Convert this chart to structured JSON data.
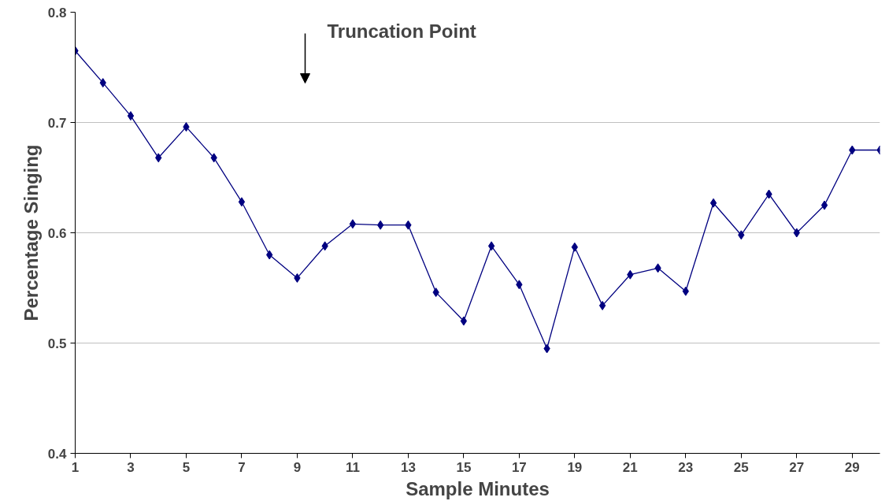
{
  "chart_data": {
    "type": "line",
    "xlabel": "Sample Minutes",
    "ylabel": "Percentage Singing",
    "x": [
      1,
      2,
      3,
      4,
      5,
      6,
      7,
      8,
      9,
      10,
      11,
      12,
      13,
      14,
      15,
      16,
      17,
      18,
      19,
      20,
      21,
      22,
      23,
      24,
      25,
      26,
      27,
      28,
      29,
      30
    ],
    "series": [
      {
        "color": "#000080",
        "values": [
          0.765,
          0.736,
          0.706,
          0.668,
          0.696,
          0.668,
          0.628,
          0.58,
          0.559,
          0.588,
          0.608,
          0.607,
          0.607,
          0.546,
          0.52,
          0.588,
          0.553,
          0.495,
          0.587,
          0.534,
          0.562,
          0.568,
          0.547,
          0.627,
          0.598,
          0.635,
          0.6,
          0.625,
          0.675,
          0.675
        ]
      }
    ],
    "xlim": [
      1,
      30
    ],
    "xticks": [
      1,
      3,
      5,
      7,
      9,
      11,
      13,
      15,
      17,
      19,
      21,
      23,
      25,
      27,
      29
    ],
    "ylim": [
      0.4,
      0.8
    ],
    "yticks": [
      {
        "value": 0.4,
        "label": "0.4"
      },
      {
        "value": 0.5,
        "label": "0.5"
      },
      {
        "value": 0.6,
        "label": "0.6"
      },
      {
        "value": 0.7,
        "label": "0.7"
      },
      {
        "value": 0.8,
        "label": "0.8"
      }
    ],
    "grid": "y",
    "marker": "diamond",
    "line_style": "solid",
    "annotations": [
      "Truncation Point"
    ]
  }
}
